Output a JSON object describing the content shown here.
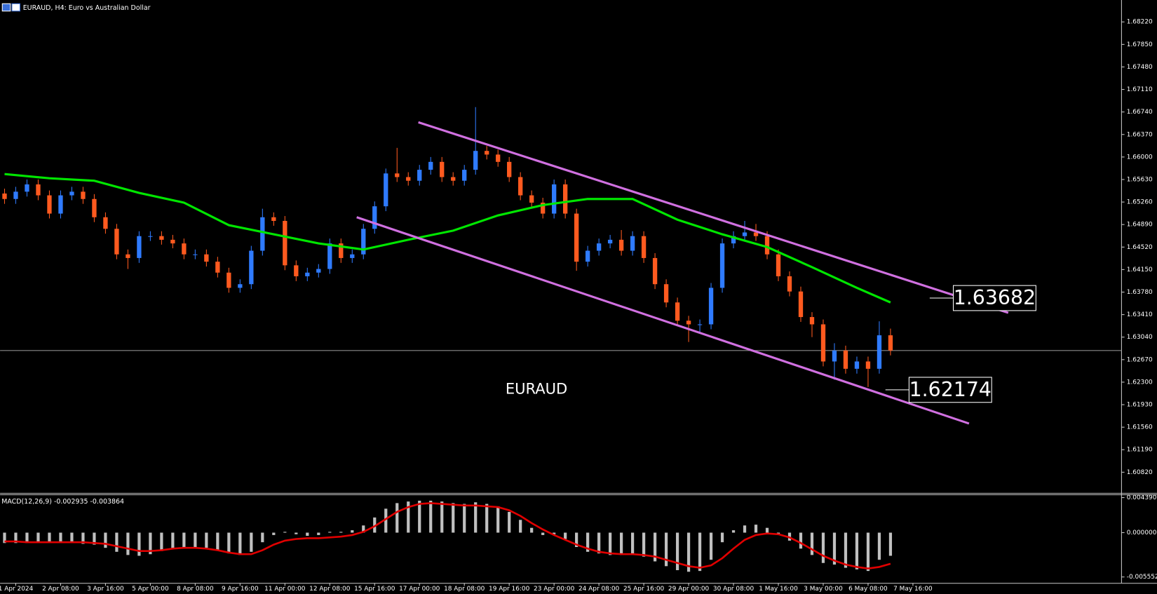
{
  "chart_data": [
    {
      "type": "candlestick",
      "title": "EURAUD, H4:  Euro vs Australian Dollar",
      "label": "EURAUD",
      "up_color": "#2f7bff",
      "down_color": "#ff5a1f",
      "xlim": [
        -0.4,
        99.6
      ],
      "ylim": [
        1.6048,
        1.6858
      ],
      "yticks": [
        {
          "value": 1.6822,
          "label": "1.68220"
        },
        {
          "value": 1.6785,
          "label": "1.67850"
        },
        {
          "value": 1.6748,
          "label": "1.67480"
        },
        {
          "value": 1.6711,
          "label": "1.67110"
        },
        {
          "value": 1.6674,
          "label": "1.66740"
        },
        {
          "value": 1.6637,
          "label": "1.66370"
        },
        {
          "value": 1.66,
          "label": "1.66000"
        },
        {
          "value": 1.6563,
          "label": "1.65630"
        },
        {
          "value": 1.6526,
          "label": "1.65260"
        },
        {
          "value": 1.6489,
          "label": "1.64890"
        },
        {
          "value": 1.6452,
          "label": "1.64520"
        },
        {
          "value": 1.6415,
          "label": "1.64150"
        },
        {
          "value": 1.6378,
          "label": "1.63780"
        },
        {
          "value": 1.6341,
          "label": "1.63410"
        },
        {
          "value": 1.6304,
          "label": "1.63040"
        },
        {
          "value": 1.6267,
          "label": "1.62670"
        },
        {
          "value": 1.623,
          "label": "1.62300"
        },
        {
          "value": 1.6193,
          "label": "1.61930"
        },
        {
          "value": 1.6156,
          "label": "1.61560"
        },
        {
          "value": 1.6119,
          "label": "1.61190"
        },
        {
          "value": 1.6082,
          "label": "1.60820"
        }
      ],
      "open": [
        1.654,
        1.6531,
        1.6543,
        1.6555,
        1.6537,
        1.6507,
        1.6537,
        1.6543,
        1.6531,
        1.6501,
        1.6482,
        1.644,
        1.6434,
        1.647,
        1.647,
        1.6464,
        1.6458,
        1.644,
        1.644,
        1.6428,
        1.641,
        1.6385,
        1.6391,
        1.6446,
        1.6501,
        1.6495,
        1.6422,
        1.6404,
        1.641,
        1.6416,
        1.6458,
        1.6434,
        1.644,
        1.6482,
        1.6519,
        1.6573,
        1.6567,
        1.6561,
        1.6579,
        1.6592,
        1.6567,
        1.6561,
        1.6579,
        1.661,
        1.6604,
        1.6592,
        1.6567,
        1.6537,
        1.6525,
        1.6507,
        1.6555,
        1.6507,
        1.6428,
        1.6446,
        1.6458,
        1.6464,
        1.6446,
        1.647,
        1.6434,
        1.6391,
        1.6361,
        1.6331,
        1.6325,
        1.6325,
        1.6385,
        1.6458,
        1.647,
        1.6476,
        1.647,
        1.644,
        1.6404,
        1.6379,
        1.6337,
        1.6325,
        1.6264,
        1.6282,
        1.6252,
        1.6264,
        1.6252,
        1.6307
      ],
      "high": [
        1.6548,
        1.6551,
        1.6563,
        1.6563,
        1.6545,
        1.6545,
        1.6551,
        1.6551,
        1.6539,
        1.6509,
        1.649,
        1.6448,
        1.6478,
        1.6478,
        1.6478,
        1.6472,
        1.6466,
        1.6448,
        1.6448,
        1.6436,
        1.6418,
        1.6399,
        1.6454,
        1.6515,
        1.6509,
        1.6503,
        1.643,
        1.6418,
        1.6424,
        1.6466,
        1.6466,
        1.6448,
        1.649,
        1.6527,
        1.6581,
        1.6615,
        1.6575,
        1.6587,
        1.66,
        1.66,
        1.6575,
        1.6587,
        1.6682,
        1.6618,
        1.6612,
        1.66,
        1.6575,
        1.6545,
        1.6533,
        1.6563,
        1.6563,
        1.6515,
        1.6454,
        1.6466,
        1.6472,
        1.648,
        1.6478,
        1.6478,
        1.6442,
        1.6399,
        1.6369,
        1.6339,
        1.6333,
        1.6393,
        1.6466,
        1.6478,
        1.6495,
        1.649,
        1.6478,
        1.6448,
        1.6412,
        1.6387,
        1.6345,
        1.6333,
        1.6294,
        1.629,
        1.6272,
        1.6272,
        1.633,
        1.6318
      ],
      "low": [
        1.6523,
        1.6523,
        1.6535,
        1.6529,
        1.6499,
        1.6499,
        1.6529,
        1.6523,
        1.6493,
        1.6474,
        1.6432,
        1.6416,
        1.6426,
        1.6462,
        1.6456,
        1.645,
        1.6432,
        1.6432,
        1.642,
        1.6402,
        1.6377,
        1.6377,
        1.6383,
        1.6438,
        1.6487,
        1.6414,
        1.6396,
        1.6396,
        1.6402,
        1.6408,
        1.6426,
        1.6426,
        1.6432,
        1.6474,
        1.6511,
        1.6559,
        1.6553,
        1.6553,
        1.6571,
        1.6559,
        1.6553,
        1.6553,
        1.6571,
        1.6596,
        1.6584,
        1.6559,
        1.6529,
        1.6517,
        1.6499,
        1.6499,
        1.6499,
        1.6413,
        1.642,
        1.6438,
        1.645,
        1.6438,
        1.6438,
        1.6426,
        1.6383,
        1.6353,
        1.6323,
        1.6296,
        1.6312,
        1.6317,
        1.6377,
        1.645,
        1.6462,
        1.6462,
        1.6432,
        1.6396,
        1.6371,
        1.6329,
        1.6304,
        1.6256,
        1.6234,
        1.6244,
        1.6244,
        1.6222,
        1.6244,
        1.6274
      ],
      "close": [
        1.6531,
        1.6543,
        1.6555,
        1.6537,
        1.6507,
        1.6537,
        1.6543,
        1.6531,
        1.6501,
        1.6482,
        1.644,
        1.6434,
        1.647,
        1.647,
        1.6464,
        1.6458,
        1.644,
        1.644,
        1.6428,
        1.641,
        1.6385,
        1.6391,
        1.6446,
        1.6501,
        1.6495,
        1.6422,
        1.6404,
        1.641,
        1.6416,
        1.6458,
        1.6434,
        1.644,
        1.6482,
        1.6519,
        1.6573,
        1.6567,
        1.6561,
        1.6579,
        1.6592,
        1.6567,
        1.6561,
        1.6579,
        1.661,
        1.6604,
        1.6592,
        1.6567,
        1.6537,
        1.6525,
        1.6507,
        1.6555,
        1.6507,
        1.6428,
        1.6446,
        1.6458,
        1.6464,
        1.6446,
        1.647,
        1.6434,
        1.6391,
        1.6361,
        1.6331,
        1.6325,
        1.6325,
        1.6385,
        1.6458,
        1.647,
        1.6476,
        1.647,
        1.644,
        1.6404,
        1.6379,
        1.6337,
        1.6325,
        1.6264,
        1.6282,
        1.6252,
        1.6264,
        1.6252,
        1.6307,
        1.6282
      ],
      "ma": {
        "color": "#00e600",
        "x": [
          0,
          4,
          8,
          12,
          16,
          20,
          24,
          28,
          32,
          36,
          40,
          44,
          48,
          52,
          56,
          60,
          64,
          68,
          72,
          76,
          79
        ],
        "values": [
          1.6572,
          1.6565,
          1.6561,
          1.6541,
          1.6525,
          1.6488,
          1.6473,
          1.6458,
          1.6448,
          1.6464,
          1.6479,
          1.6504,
          1.6521,
          1.6531,
          1.6531,
          1.6497,
          1.6473,
          1.6452,
          1.6419,
          1.6385,
          1.6361
        ]
      },
      "trendlines": [
        {
          "color": "#d070e0",
          "x": [
            36.9,
            89.5
          ],
          "values": [
            1.6657,
            1.6344
          ]
        },
        {
          "color": "#d070e0",
          "x": [
            31.4,
            86
          ],
          "values": [
            1.6501,
            1.6162
          ]
        }
      ],
      "price_labels": [
        1.63682,
        1.62174
      ]
    },
    {
      "type": "macd",
      "title": "MACD(12,26,9) -0.002935 -0.003864",
      "xlim": [
        -0.4,
        99.6
      ],
      "ylim": [
        -0.0063,
        0.0047
      ],
      "yticks": [
        {
          "value": 0.00439,
          "label": "0.004390"
        },
        {
          "value": 0,
          "label": "0.000000"
        },
        {
          "value": -0.005552,
          "label": "-0.005552"
        }
      ],
      "xticks": [
        {
          "value": 1,
          "label": "1 Apr 2024"
        },
        {
          "value": 5,
          "label": "2 Apr 08:00"
        },
        {
          "value": 9,
          "label": "3 Apr 16:00"
        },
        {
          "value": 13,
          "label": "5 Apr 00:00"
        },
        {
          "value": 17,
          "label": "8 Apr 08:00"
        },
        {
          "value": 21,
          "label": "9 Apr 16:00"
        },
        {
          "value": 25,
          "label": "11 Apr 00:00"
        },
        {
          "value": 29,
          "label": "12 Apr 08:00"
        },
        {
          "value": 33,
          "label": "15 Apr 16:00"
        },
        {
          "value": 37,
          "label": "17 Apr 00:00"
        },
        {
          "value": 41,
          "label": "18 Apr 08:00"
        },
        {
          "value": 45,
          "label": "19 Apr 16:00"
        },
        {
          "value": 49,
          "label": "23 Apr 00:00"
        },
        {
          "value": 53,
          "label": "24 Apr 08:00"
        },
        {
          "value": 57,
          "label": "25 Apr 16:00"
        },
        {
          "value": 61,
          "label": "29 Apr 00:00"
        },
        {
          "value": 65,
          "label": "30 Apr 08:00"
        },
        {
          "value": 69,
          "label": "1 May 16:00"
        },
        {
          "value": 73,
          "label": "3 May 00:00"
        },
        {
          "value": 77,
          "label": "6 May 08:00"
        },
        {
          "value": 81,
          "label": "7 May 16:00"
        }
      ],
      "histogram": {
        "color": "#c0c0c0",
        "values": [
          -0.0013,
          -0.0013,
          -0.0013,
          -0.0013,
          -0.0013,
          -0.0013,
          -0.0013,
          -0.0014,
          -0.0015,
          -0.0019,
          -0.0024,
          -0.0028,
          -0.0029,
          -0.0027,
          -0.0023,
          -0.002,
          -0.0019,
          -0.0018,
          -0.0019,
          -0.0022,
          -0.0026,
          -0.0028,
          -0.0024,
          -0.0012,
          -0.0003,
          0.0001,
          -0.0002,
          -0.0004,
          -0.0003,
          0.0001,
          0.0001,
          0.0003,
          0.0009,
          0.0019,
          0.003,
          0.0037,
          0.0039,
          0.004,
          0.004,
          0.0039,
          0.0037,
          0.0036,
          0.0038,
          0.0036,
          0.0033,
          0.0026,
          0.0016,
          0.0006,
          -0.0003,
          -0.0002,
          -0.0008,
          -0.0018,
          -0.0024,
          -0.0026,
          -0.0028,
          -0.0028,
          -0.0027,
          -0.003,
          -0.0036,
          -0.0042,
          -0.0047,
          -0.0049,
          -0.0048,
          -0.0034,
          -0.0012,
          0.0003,
          0.0009,
          0.001,
          0.0006,
          -0.0002,
          -0.001,
          -0.002,
          -0.0028,
          -0.0038,
          -0.004,
          -0.0044,
          -0.0046,
          -0.0048,
          -0.0034,
          -0.0029
        ]
      },
      "signal": {
        "color": "#e00000",
        "values": [
          -0.0011,
          -0.0011,
          -0.0012,
          -0.0012,
          -0.0012,
          -0.0012,
          -0.0012,
          -0.0012,
          -0.0013,
          -0.0014,
          -0.0017,
          -0.002,
          -0.0023,
          -0.0023,
          -0.0022,
          -0.002,
          -0.0019,
          -0.0019,
          -0.002,
          -0.0022,
          -0.0025,
          -0.0027,
          -0.0027,
          -0.0022,
          -0.0015,
          -0.001,
          -0.0008,
          -0.0007,
          -0.0007,
          -0.0006,
          -0.0005,
          -0.0003,
          0.0001,
          0.0008,
          0.0017,
          0.0026,
          0.0032,
          0.0036,
          0.0037,
          0.0036,
          0.0035,
          0.0034,
          0.0034,
          0.0033,
          0.0032,
          0.0028,
          0.0021,
          0.0012,
          0.0004,
          -0.0003,
          -0.0009,
          -0.0015,
          -0.002,
          -0.0024,
          -0.0026,
          -0.0027,
          -0.0027,
          -0.0028,
          -0.003,
          -0.0034,
          -0.0038,
          -0.0042,
          -0.0044,
          -0.0041,
          -0.0032,
          -0.002,
          -0.0009,
          -0.0003,
          -0.0001,
          -0.0002,
          -0.0006,
          -0.0013,
          -0.0021,
          -0.0029,
          -0.0035,
          -0.004,
          -0.0043,
          -0.0045,
          -0.0043,
          -0.0039
        ]
      }
    }
  ]
}
